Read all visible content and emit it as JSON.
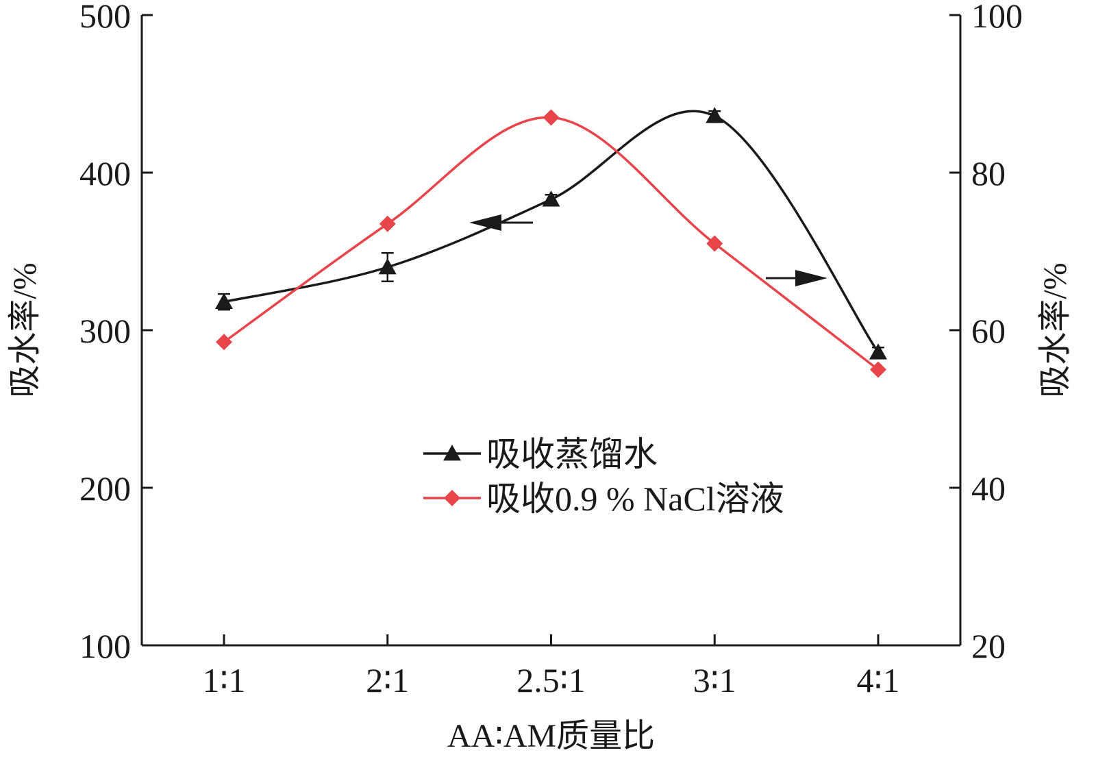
{
  "chart_data": {
    "type": "line",
    "title": "",
    "categories": [
      "1∶1",
      "2∶1",
      "2.5∶1",
      "3∶1",
      "4∶1"
    ],
    "xlabel": "AA∶AM质量比",
    "ylabel_left": "吸水率/%",
    "ylabel_right": "吸水率/%",
    "ylim_left": [
      100,
      500
    ],
    "ylim_right": [
      20,
      100
    ],
    "yticks_left": [
      100,
      200,
      300,
      400,
      500
    ],
    "yticks_right": [
      20,
      40,
      60,
      80,
      100
    ],
    "grid": false,
    "legend_position": "center",
    "series": [
      {
        "name": "吸收蒸馏水",
        "axis": "left",
        "marker": "triangle",
        "color": "#1a1a1a",
        "values": [
          318,
          340,
          383,
          436,
          286
        ],
        "error": [
          5,
          9,
          3,
          3,
          3
        ]
      },
      {
        "name": "吸收0.9 % NaCl溶液",
        "axis": "right",
        "marker": "diamond",
        "color": "#e8454b",
        "values": [
          58.5,
          73.5,
          87,
          71,
          55
        ],
        "error": [
          0,
          0,
          0,
          0,
          0
        ]
      }
    ],
    "annotations": [
      {
        "type": "arrow",
        "direction": "left",
        "refers_to": "吸收蒸馏水"
      },
      {
        "type": "arrow",
        "direction": "right",
        "refers_to": "吸收0.9 % NaCl溶液"
      }
    ]
  }
}
